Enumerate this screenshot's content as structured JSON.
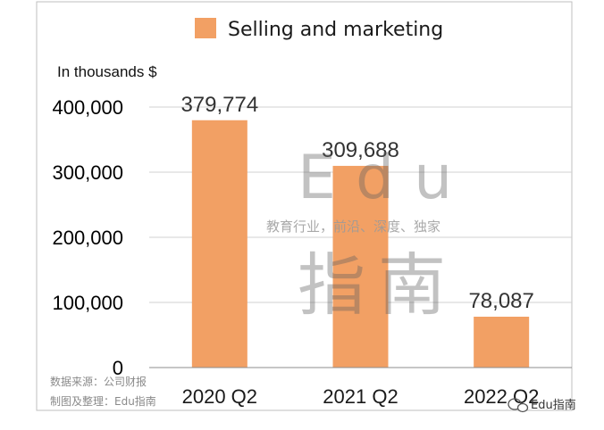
{
  "chart_data": {
    "type": "bar",
    "title": "",
    "categories": [
      "2020 Q2",
      "2021 Q2",
      "2022 Q2"
    ],
    "series": [
      {
        "name": "Selling and marketing",
        "values": [
          379774,
          309688,
          78087
        ],
        "color": "#f2a064"
      }
    ],
    "data_labels": [
      "379,774",
      "309,688",
      "78,087"
    ],
    "y_ticks": [
      "0",
      "100,000",
      "200,000",
      "300,000",
      "400,000"
    ],
    "ylim": [
      0,
      400000
    ],
    "ylabel": "In thousands $",
    "xlabel": "",
    "grid": true,
    "legend": "top"
  },
  "watermark": {
    "large": "Edu",
    "tagline": "教育行业，前沿、深度、独家",
    "chinese": "指南"
  },
  "source": {
    "data_source": "数据来源：公司财报",
    "made_by": "制图及整理：Edu指南"
  },
  "brand": {
    "label": "Edu指南",
    "icon": "wechat-icon"
  }
}
